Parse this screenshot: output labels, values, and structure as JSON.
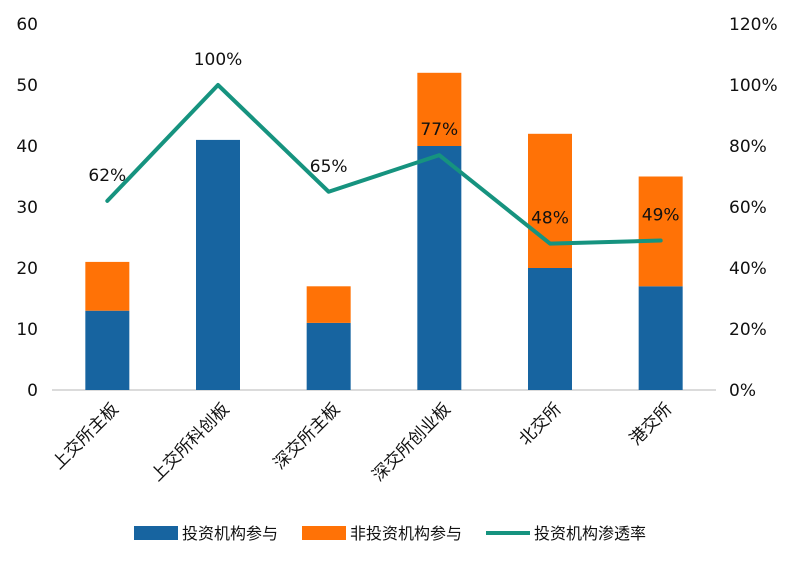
{
  "chart_data": {
    "type": "bar",
    "stacked": true,
    "categories": [
      "上交所主板",
      "上交所科创板",
      "深交所主板",
      "深交所创业板",
      "北交所",
      "港交所"
    ],
    "series": [
      {
        "name": "投资机构参与",
        "type": "bar",
        "axis": "left",
        "color": "#1764A0",
        "values": [
          13,
          41,
          11,
          40,
          20,
          17
        ]
      },
      {
        "name": "非投资机构参与",
        "type": "bar",
        "axis": "left",
        "color": "#FF7206",
        "values": [
          8,
          0,
          6,
          12,
          22,
          18
        ]
      },
      {
        "name": "投资机构渗透率",
        "type": "line",
        "axis": "right",
        "color": "#16937F",
        "values": [
          0.62,
          1.0,
          0.65,
          0.77,
          0.48,
          0.49
        ],
        "labels": [
          "62%",
          "100%",
          "65%",
          "77%",
          "48%",
          "49%"
        ]
      }
    ],
    "y_left": {
      "range": [
        0,
        60
      ],
      "ticks": [
        0,
        10,
        20,
        30,
        40,
        50,
        60
      ],
      "tick_labels": [
        "0",
        "10",
        "20",
        "30",
        "40",
        "50",
        "60"
      ]
    },
    "y_right": {
      "range": [
        0,
        1.2
      ],
      "ticks": [
        0,
        0.2,
        0.4,
        0.6,
        0.8,
        1.0,
        1.2
      ],
      "tick_labels": [
        "0%",
        "20%",
        "40%",
        "60%",
        "80%",
        "100%",
        "120%"
      ]
    },
    "grid": false,
    "legend_position": "bottom",
    "title": "",
    "xlabel": "",
    "ylabel": ""
  }
}
